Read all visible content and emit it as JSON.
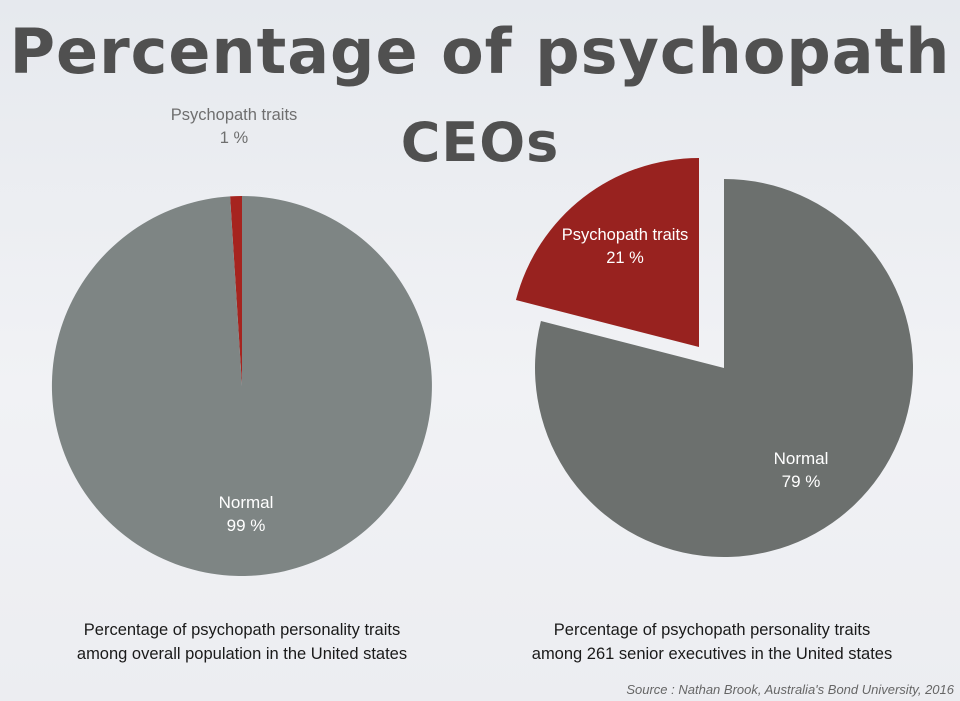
{
  "title": {
    "line1": "Percentage of psychopath",
    "line2": "CEOs"
  },
  "chart_data": [
    {
      "type": "pie",
      "title": "",
      "slices": [
        {
          "label": "Psychopath traits",
          "value": 1,
          "value_label": "1 %",
          "color": "#a6241f"
        },
        {
          "label": "Normal",
          "value": 99,
          "value_label": "99 %",
          "color": "#7e8584"
        }
      ],
      "caption": [
        "Percentage of psychopath personality traits",
        "among overall population in the United states"
      ]
    },
    {
      "type": "pie",
      "title": "",
      "slices": [
        {
          "label": "Psychopath traits",
          "value": 21,
          "value_label": "21 %",
          "color": "#98221f",
          "exploded": true
        },
        {
          "label": "Normal",
          "value": 79,
          "value_label": "79 %",
          "color": "#6c706e"
        }
      ],
      "caption": [
        "Percentage of psychopath personality traits",
        "among 261 senior executives in the United states"
      ]
    }
  ],
  "source": "Source : Nathan Brook, Australia's Bond University, 2016"
}
